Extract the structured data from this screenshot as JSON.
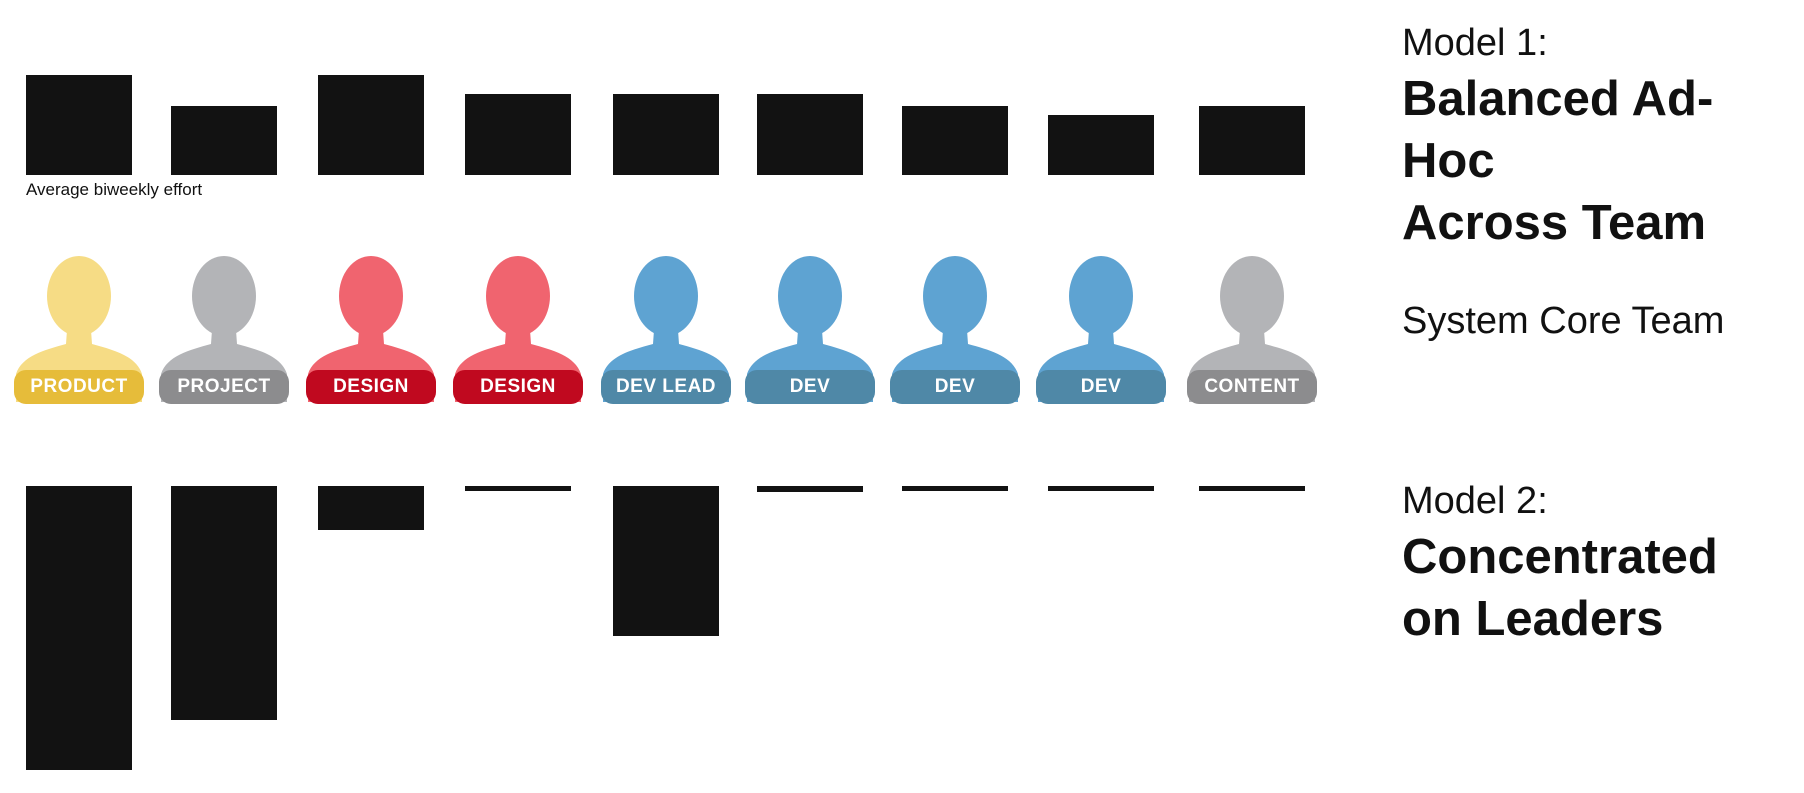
{
  "caption": "Average biweekly effort",
  "model1": {
    "label": "Model 1:",
    "title_line1": "Balanced Ad-Hoc",
    "title_line2": "Across Team"
  },
  "team_label": "System Core Team",
  "model2": {
    "label": "Model 2:",
    "title_line1": "Concentrated",
    "title_line2": "on Leaders"
  },
  "colors": {
    "bar": "#121212",
    "product_head": "#f6dc85",
    "product_label": "#e6bc3a",
    "project_head": "#b3b4b7",
    "project_label": "#8c8c8e",
    "design_head": "#f0646f",
    "design_label": "#c0091f",
    "dev_head": "#5ea3d2",
    "dev_label": "#4f88a7",
    "content_head": "#b3b4b7",
    "content_label": "#8c8c8e"
  },
  "team": [
    {
      "role": "PRODUCT",
      "icon": "person-icon",
      "color_key": "product"
    },
    {
      "role": "PROJECT",
      "icon": "person-icon",
      "color_key": "project"
    },
    {
      "role": "DESIGN",
      "icon": "person-icon",
      "color_key": "design"
    },
    {
      "role": "DESIGN",
      "icon": "person-icon",
      "color_key": "design"
    },
    {
      "role": "DEV LEAD",
      "icon": "person-icon",
      "color_key": "dev"
    },
    {
      "role": "DEV",
      "icon": "person-icon",
      "color_key": "dev"
    },
    {
      "role": "DEV",
      "icon": "person-icon",
      "color_key": "dev"
    },
    {
      "role": "DEV",
      "icon": "person-icon",
      "color_key": "dev"
    },
    {
      "role": "CONTENT",
      "icon": "person-icon",
      "color_key": "content"
    }
  ],
  "chart_data": [
    {
      "type": "bar",
      "series": [
        {
          "values": [
            0.1,
            0.069,
            0.1,
            0.081,
            0.081,
            0.081,
            0.069,
            0.06,
            0.069
          ]
        }
      ],
      "categories": [
        "PRODUCT",
        "PROJECT",
        "DESIGN",
        "DESIGN",
        "DEV LEAD",
        "DEV",
        "DEV",
        "DEV",
        "CONTENT"
      ],
      "direction": "up",
      "ylabel": "Average biweekly effort"
    },
    {
      "type": "bar",
      "series": [
        {
          "values": [
            0.284,
            0.234,
            0.044,
            0.005,
            0.15,
            0.006,
            0.005,
            0.005,
            0.005
          ]
        }
      ],
      "categories": [
        "PRODUCT",
        "PROJECT",
        "DESIGN",
        "DESIGN",
        "DEV LEAD",
        "DEV",
        "DEV",
        "DEV",
        "CONTENT"
      ],
      "direction": "down"
    }
  ]
}
